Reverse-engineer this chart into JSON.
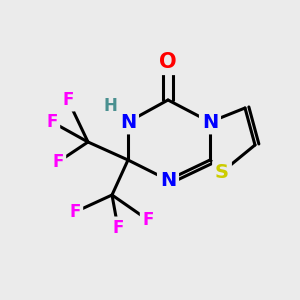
{
  "background_color": "#ebebeb",
  "atom_colors": {
    "O": "#ff0000",
    "N": "#0000ff",
    "S": "#cccc00",
    "F": "#ff00ff",
    "H": "#4a9090",
    "C": "#000000"
  },
  "bond_color": "#000000",
  "bond_width": 2.2,
  "figsize": [
    3.0,
    3.0
  ],
  "dpi": 100
}
